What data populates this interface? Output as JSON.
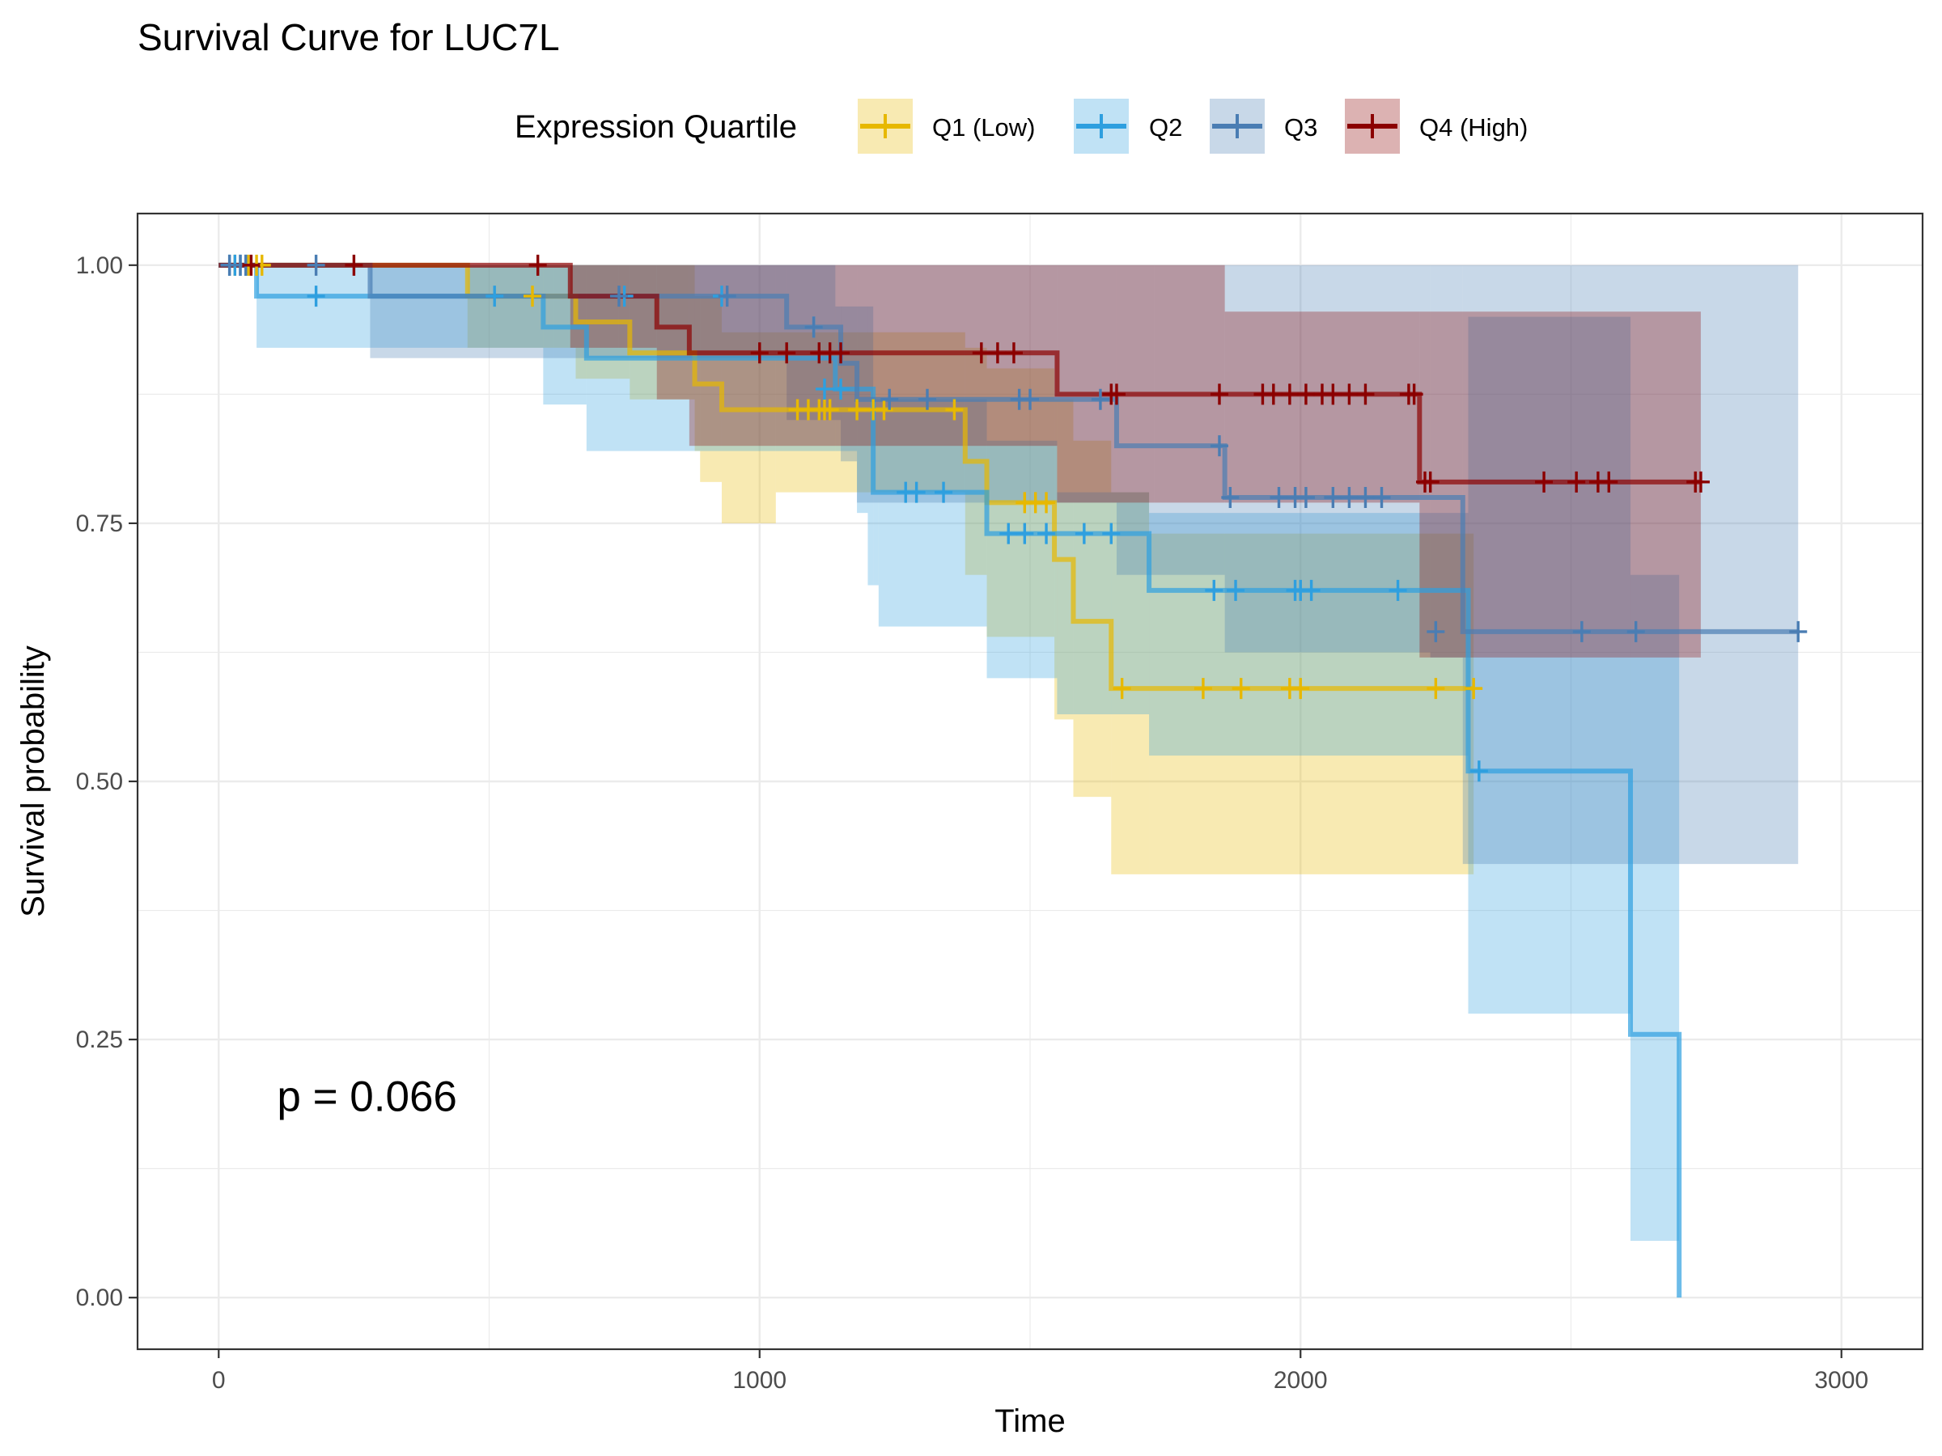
{
  "chart_data": {
    "type": "line",
    "subtype": "kaplan-meier survival curve with confidence bands",
    "title": "Survival Curve for LUC7L",
    "xlabel": "Time",
    "ylabel": "Survival probability",
    "xlim": [
      -150,
      3150
    ],
    "ylim": [
      -0.05,
      1.05
    ],
    "x_ticks": [
      0,
      1000,
      2000,
      3000
    ],
    "x_tick_labels": [
      "0",
      "1000",
      "2000",
      "3000"
    ],
    "y_ticks": [
      0,
      0.25,
      0.5,
      0.75,
      1.0
    ],
    "y_tick_labels": [
      "0.00",
      "0.25",
      "0.50",
      "0.75",
      "1.00"
    ],
    "grid": true,
    "legend": {
      "title": "Expression Quartile",
      "position": "top"
    },
    "annotation": {
      "text": "p = 0.066",
      "x": 250,
      "y": 0.195
    },
    "series": [
      {
        "name": "Q1 (Low)",
        "color": "#E7B800",
        "steps": [
          [
            0,
            1.0
          ],
          [
            460,
            0.97
          ],
          [
            660,
            0.945
          ],
          [
            760,
            0.915
          ],
          [
            880,
            0.885
          ],
          [
            930,
            0.86
          ],
          [
            1380,
            0.81
          ],
          [
            1420,
            0.77
          ],
          [
            1545,
            0.715
          ],
          [
            1580,
            0.655
          ],
          [
            1650,
            0.59
          ],
          [
            2320,
            0.59
          ]
        ],
        "lower": [
          [
            0,
            1.0
          ],
          [
            460,
            0.92
          ],
          [
            660,
            0.89
          ],
          [
            760,
            0.87
          ],
          [
            880,
            0.82
          ],
          [
            890,
            0.79
          ],
          [
            930,
            0.75
          ],
          [
            1030,
            0.78
          ],
          [
            1380,
            0.7
          ],
          [
            1420,
            0.64
          ],
          [
            1545,
            0.56
          ],
          [
            1580,
            0.485
          ],
          [
            1650,
            0.41
          ],
          [
            2320,
            0.41
          ]
        ],
        "upper": [
          [
            0,
            1.0
          ],
          [
            460,
            1.0
          ],
          [
            660,
            1.0
          ],
          [
            760,
            1.0
          ],
          [
            880,
            0.97
          ],
          [
            930,
            0.935
          ],
          [
            1380,
            0.92
          ],
          [
            1420,
            0.9
          ],
          [
            1545,
            0.87
          ],
          [
            1580,
            0.83
          ],
          [
            1650,
            0.78
          ],
          [
            1720,
            0.74
          ],
          [
            2320,
            0.74
          ]
        ],
        "censor_x": [
          30,
          55,
          70,
          80,
          580,
          1070,
          1090,
          1110,
          1120,
          1130,
          1180,
          1210,
          1230,
          1360,
          1490,
          1510,
          1530,
          1670,
          1820,
          1890,
          1980,
          2000,
          2250,
          2320
        ],
        "censor_y": [
          1.0,
          1.0,
          1.0,
          1.0,
          0.97,
          0.86,
          0.86,
          0.86,
          0.86,
          0.86,
          0.86,
          0.86,
          0.86,
          0.86,
          0.77,
          0.77,
          0.77,
          0.59,
          0.59,
          0.59,
          0.59,
          0.59,
          0.59,
          0.59
        ]
      },
      {
        "name": "Q2",
        "color": "#2E9FDF",
        "steps": [
          [
            0,
            1.0
          ],
          [
            70,
            0.97
          ],
          [
            600,
            0.94
          ],
          [
            680,
            0.91
          ],
          [
            810,
            0.91
          ],
          [
            1140,
            0.88
          ],
          [
            1210,
            0.78
          ],
          [
            1420,
            0.74
          ],
          [
            1720,
            0.685
          ],
          [
            2310,
            0.51
          ],
          [
            2610,
            0.255
          ],
          [
            2700,
            0.0
          ]
        ],
        "lower": [
          [
            0,
            1.0
          ],
          [
            70,
            0.92
          ],
          [
            600,
            0.865
          ],
          [
            680,
            0.82
          ],
          [
            1030,
            0.82
          ],
          [
            1180,
            0.76
          ],
          [
            1200,
            0.69
          ],
          [
            1220,
            0.65
          ],
          [
            1420,
            0.6
          ],
          [
            1550,
            0.565
          ],
          [
            1720,
            0.525
          ],
          [
            2310,
            0.275
          ],
          [
            2610,
            0.055
          ],
          [
            2700,
            0.055
          ]
        ],
        "upper": [
          [
            0,
            1.0
          ],
          [
            70,
            1.0
          ],
          [
            1140,
            0.96
          ],
          [
            1210,
            0.87
          ],
          [
            1420,
            0.83
          ],
          [
            1550,
            0.78
          ],
          [
            1720,
            0.76
          ],
          [
            2310,
            0.95
          ],
          [
            2610,
            0.7
          ],
          [
            2700,
            0.7
          ]
        ],
        "censor_x": [
          20,
          30,
          40,
          50,
          180,
          510,
          750,
          930,
          1100,
          1120,
          1150,
          1270,
          1290,
          1340,
          1460,
          1490,
          1530,
          1600,
          1650,
          1840,
          1880,
          1990,
          2000,
          2020,
          2180,
          2330
        ],
        "censor_y": [
          1.0,
          1.0,
          1.0,
          1.0,
          0.97,
          0.97,
          0.97,
          0.97,
          0.94,
          0.88,
          0.88,
          0.78,
          0.78,
          0.78,
          0.74,
          0.74,
          0.74,
          0.74,
          0.74,
          0.685,
          0.685,
          0.685,
          0.685,
          0.685,
          0.685,
          0.51
        ]
      },
      {
        "name": "Q3",
        "color": "#4A7DB3",
        "steps": [
          [
            0,
            1.0
          ],
          [
            280,
            0.97
          ],
          [
            620,
            0.97
          ],
          [
            1050,
            0.94
          ],
          [
            1150,
            0.905
          ],
          [
            1180,
            0.87
          ],
          [
            1660,
            0.825
          ],
          [
            1860,
            0.775
          ],
          [
            2300,
            0.645
          ],
          [
            2920,
            0.645
          ]
        ],
        "lower": [
          [
            0,
            1.0
          ],
          [
            280,
            0.91
          ],
          [
            620,
            0.91
          ],
          [
            1050,
            0.85
          ],
          [
            1150,
            0.81
          ],
          [
            1180,
            0.77
          ],
          [
            1660,
            0.7
          ],
          [
            1860,
            0.625
          ],
          [
            2240,
            0.62
          ],
          [
            2300,
            0.42
          ],
          [
            2920,
            0.42
          ]
        ],
        "upper": [
          [
            0,
            1.0
          ],
          [
            280,
            1.0
          ],
          [
            2300,
            1.0
          ],
          [
            2920,
            0.975
          ]
        ],
        "censor_x": [
          20,
          40,
          50,
          180,
          740,
          940,
          1100,
          1240,
          1310,
          1480,
          1500,
          1630,
          1850,
          1870,
          1960,
          1990,
          2010,
          2060,
          2090,
          2120,
          2150,
          2250,
          2520,
          2620,
          2920
        ],
        "censor_y": [
          1.0,
          1.0,
          1.0,
          1.0,
          0.97,
          0.97,
          0.94,
          0.87,
          0.87,
          0.87,
          0.87,
          0.87,
          0.825,
          0.775,
          0.775,
          0.775,
          0.775,
          0.775,
          0.775,
          0.775,
          0.775,
          0.645,
          0.645,
          0.645,
          0.645
        ]
      },
      {
        "name": "Q4 (High)",
        "color": "#8B0000",
        "steps": [
          [
            0,
            1.0
          ],
          [
            650,
            0.97
          ],
          [
            740,
            0.97
          ],
          [
            810,
            0.94
          ],
          [
            870,
            0.915
          ],
          [
            1550,
            0.875
          ],
          [
            2220,
            0.79
          ],
          [
            2740,
            0.79
          ]
        ],
        "lower": [
          [
            0,
            1.0
          ],
          [
            650,
            0.92
          ],
          [
            740,
            0.92
          ],
          [
            810,
            0.87
          ],
          [
            870,
            0.825
          ],
          [
            1550,
            0.77
          ],
          [
            1860,
            0.77
          ],
          [
            2220,
            0.62
          ],
          [
            2740,
            0.62
          ]
        ],
        "upper": [
          [
            0,
            1.0
          ],
          [
            1730,
            1.0
          ],
          [
            1860,
            0.955
          ],
          [
            2220,
            0.955
          ],
          [
            2740,
            1.0
          ]
        ],
        "censor_x": [
          60,
          250,
          590,
          1000,
          1050,
          1110,
          1130,
          1150,
          1410,
          1440,
          1470,
          1650,
          1660,
          1850,
          1930,
          1950,
          1980,
          2010,
          2040,
          2060,
          2090,
          2120,
          2200,
          2210,
          2230,
          2240,
          2450,
          2510,
          2550,
          2570,
          2730,
          2740
        ],
        "censor_y": [
          1.0,
          1.0,
          1.0,
          0.915,
          0.915,
          0.915,
          0.915,
          0.915,
          0.915,
          0.915,
          0.915,
          0.875,
          0.875,
          0.875,
          0.875,
          0.875,
          0.875,
          0.875,
          0.875,
          0.875,
          0.875,
          0.875,
          0.875,
          0.875,
          0.79,
          0.79,
          0.79,
          0.79,
          0.79,
          0.79,
          0.79,
          0.79
        ]
      }
    ]
  }
}
